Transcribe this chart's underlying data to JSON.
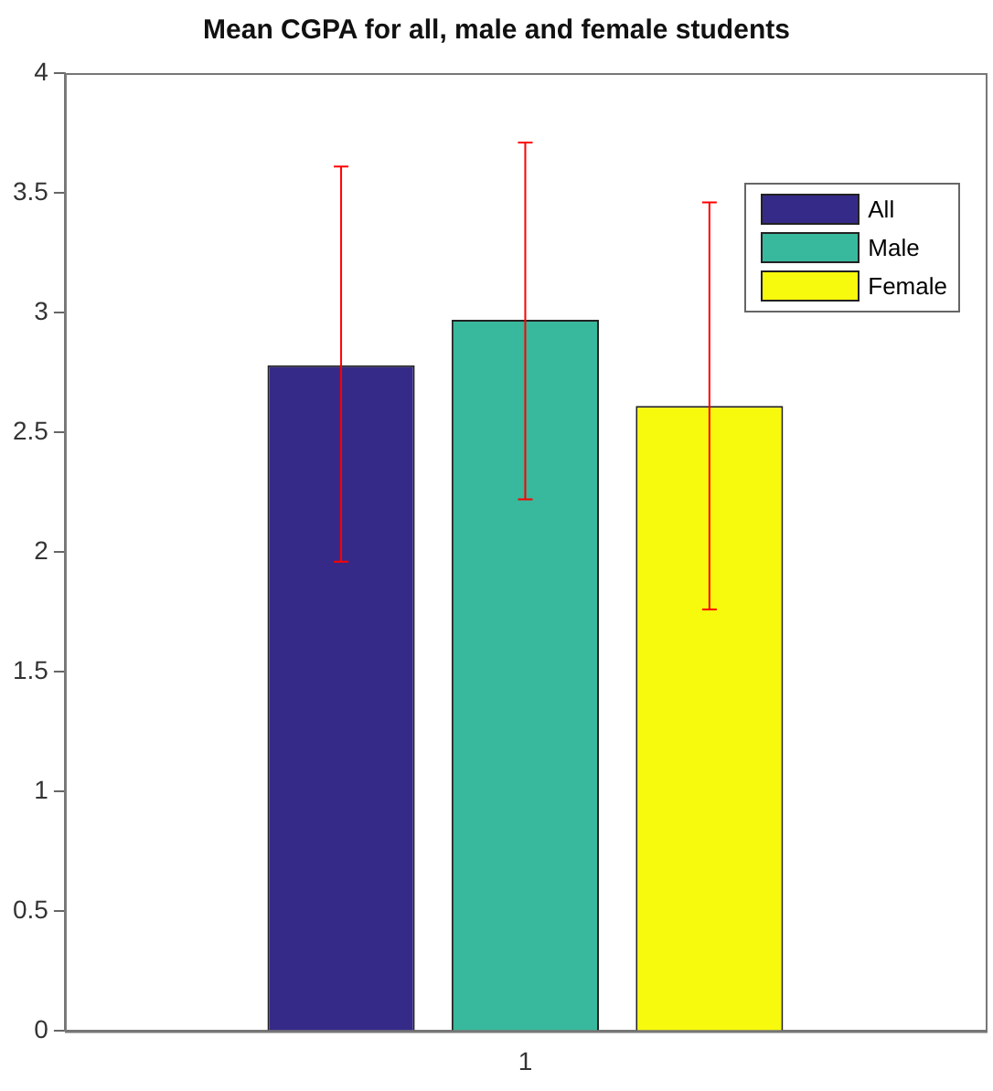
{
  "chart_data": {
    "type": "bar",
    "title": "Mean CGPA for all, male and female students",
    "categories": [
      "1"
    ],
    "series": [
      {
        "name": "All",
        "color": "#352a87",
        "values": [
          2.78
        ],
        "errors": [
          [
            1.96,
            3.61
          ]
        ]
      },
      {
        "name": "Male",
        "color": "#38b89c",
        "values": [
          2.97
        ],
        "errors": [
          [
            2.22,
            3.71
          ]
        ]
      },
      {
        "name": "Female",
        "color": "#f8fa0d",
        "values": [
          2.61
        ],
        "errors": [
          [
            1.76,
            3.46
          ]
        ]
      }
    ],
    "ylim": [
      0,
      4
    ],
    "yticks": [
      0,
      0.5,
      1,
      1.5,
      2,
      2.5,
      3,
      3.5,
      4
    ],
    "grid": false,
    "legend": "top right"
  }
}
